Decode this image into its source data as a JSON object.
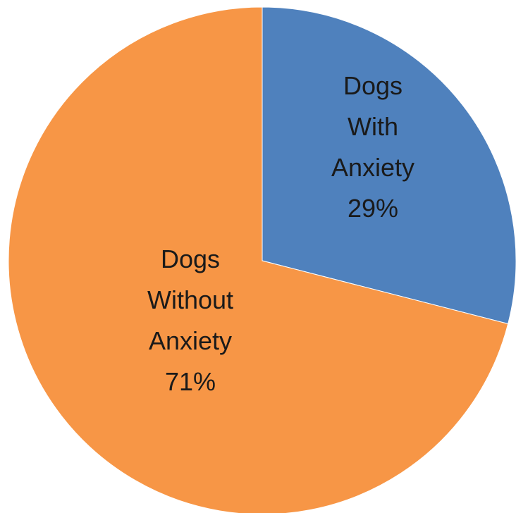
{
  "chart_data": {
    "type": "pie",
    "title": "",
    "start_angle": "12 o'clock",
    "direction": "clockwise",
    "legend": "none",
    "slices": [
      {
        "label": "Dogs With Anxiety",
        "label_lines": [
          "Dogs",
          "With",
          "Anxiety",
          "29%"
        ],
        "value": 29,
        "percent_label": "29%",
        "color": "#4f81bd"
      },
      {
        "label": "Dogs Without Anxiety",
        "label_lines": [
          "Dogs",
          "Without",
          "Anxiety",
          "71%"
        ],
        "value": 71,
        "percent_label": "71%",
        "color": "#f79646"
      }
    ]
  }
}
